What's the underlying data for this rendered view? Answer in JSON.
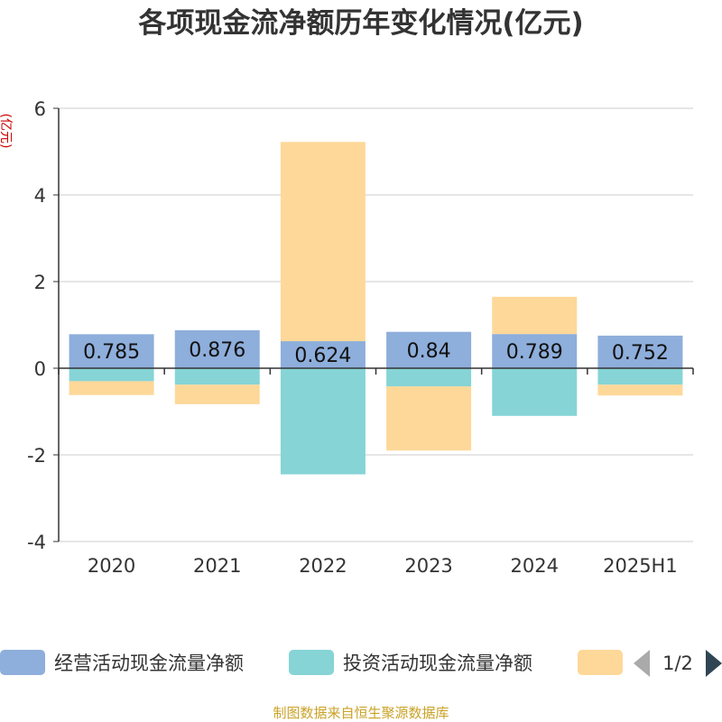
{
  "chart_data": {
    "type": "bar",
    "stacked": true,
    "title": "各项现金流净额历年变化情况(亿元)",
    "unit_label": "(亿元)",
    "categories": [
      "2020",
      "2021",
      "2022",
      "2023",
      "2024",
      "2025H1"
    ],
    "ylim": [
      -4,
      6
    ],
    "yticks": [
      "6",
      "4",
      "2",
      "0",
      "-2",
      "-4"
    ],
    "grid": true,
    "legend_position": "bottom",
    "series": [
      {
        "name": "经营活动现金流量净额",
        "color": "#8eaedb",
        "values": [
          0.785,
          0.876,
          0.624,
          0.84,
          0.789,
          0.752
        ],
        "labels": [
          "0.785",
          "0.876",
          "0.624",
          "0.84",
          "0.789",
          "0.752"
        ]
      },
      {
        "name": "投资活动现金流量净额",
        "color": "#86d4d6",
        "values": [
          -0.3,
          -0.38,
          -2.45,
          -0.42,
          -1.1,
          -0.38
        ]
      },
      {
        "name": "",
        "color": "#fed899",
        "values": [
          -0.32,
          -0.45,
          4.6,
          -1.48,
          0.86,
          -0.25
        ]
      }
    ],
    "legend_page": "1/2",
    "source_note": "制图数据来自恒生聚源数据库"
  }
}
